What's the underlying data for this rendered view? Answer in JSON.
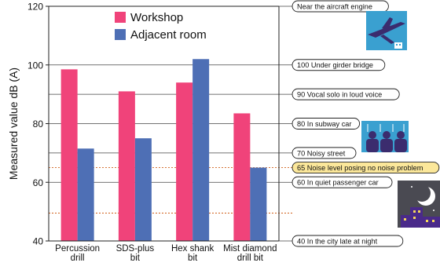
{
  "chart_data": {
    "type": "bar",
    "ylabel": "Measured value dB (A)",
    "ylim": [
      40,
      120
    ],
    "yticks": [
      "40",
      "60",
      "80",
      "100",
      "120"
    ],
    "categories": [
      [
        "Percussion",
        "drill"
      ],
      [
        "SDS-plus",
        "bit"
      ],
      [
        "Hex shank",
        "bit"
      ],
      [
        "Mist diamond",
        "drill bit"
      ]
    ],
    "series": [
      {
        "name": "Workshop",
        "color": "#f0437a",
        "values": [
          98.5,
          91,
          94,
          83.5
        ]
      },
      {
        "name": "Adjacent room",
        "color": "#4e6fb5",
        "values": [
          71.5,
          75,
          102,
          65
        ]
      }
    ],
    "reference_lines": [
      {
        "value": 120,
        "label": "Near the aircraft engine",
        "style": "solid"
      },
      {
        "value": 100,
        "label": "100 Under girder bridge",
        "style": "solid"
      },
      {
        "value": 90,
        "label": "90 Vocal solo in loud voice",
        "style": "solid"
      },
      {
        "value": 80,
        "label": "80 In subway car",
        "style": "solid"
      },
      {
        "value": 70,
        "label": "70 Noisy street",
        "style": "solid"
      },
      {
        "value": 65,
        "label": "65 Noise level posing no noise problem",
        "style": "dotted",
        "highlight": true
      },
      {
        "value": 60,
        "label": "60 In quiet passenger car",
        "style": "solid"
      },
      {
        "value": 49.5,
        "label": "",
        "style": "dotted"
      },
      {
        "value": 40,
        "label": "40 In the city late at night",
        "style": "solid"
      }
    ],
    "illustrations": [
      "airplane-icon",
      "subway-passengers-icon",
      "night-city-icon"
    ]
  }
}
